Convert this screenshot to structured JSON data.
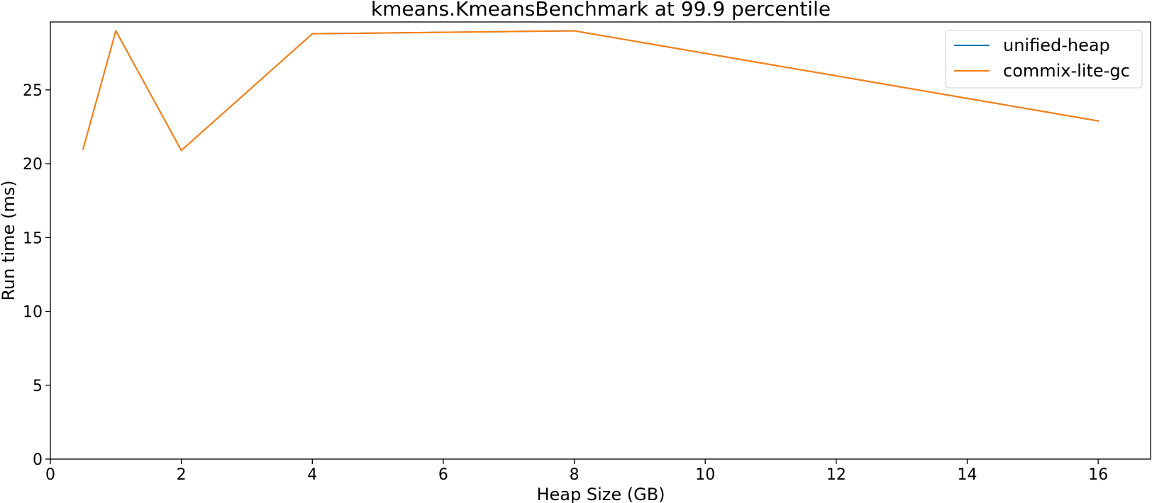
{
  "chart_data": {
    "type": "line",
    "title": "kmeans.KmeansBenchmark at 99.9 percentile",
    "xlabel": "Heap Size (GB)",
    "ylabel": "Run time (ms)",
    "xlim": [
      0,
      16.8
    ],
    "ylim": [
      0,
      29.6
    ],
    "xticks": [
      0,
      2,
      4,
      6,
      8,
      10,
      12,
      14,
      16
    ],
    "yticks": [
      0,
      5,
      10,
      15,
      20,
      25
    ],
    "grid": false,
    "legend_position": "top-right",
    "series": [
      {
        "name": "unified-heap",
        "color": "#1f77b4",
        "x": [
          0.5,
          1,
          2,
          4,
          8,
          16
        ],
        "y": [
          21.0,
          29.0,
          20.9,
          28.8,
          29.0,
          22.9
        ]
      },
      {
        "name": "commix-lite-gc",
        "color": "#ff7f0e",
        "x": [
          0.5,
          1,
          2,
          4,
          8,
          16
        ],
        "y": [
          21.0,
          29.0,
          20.9,
          28.8,
          29.0,
          22.9
        ]
      }
    ]
  }
}
